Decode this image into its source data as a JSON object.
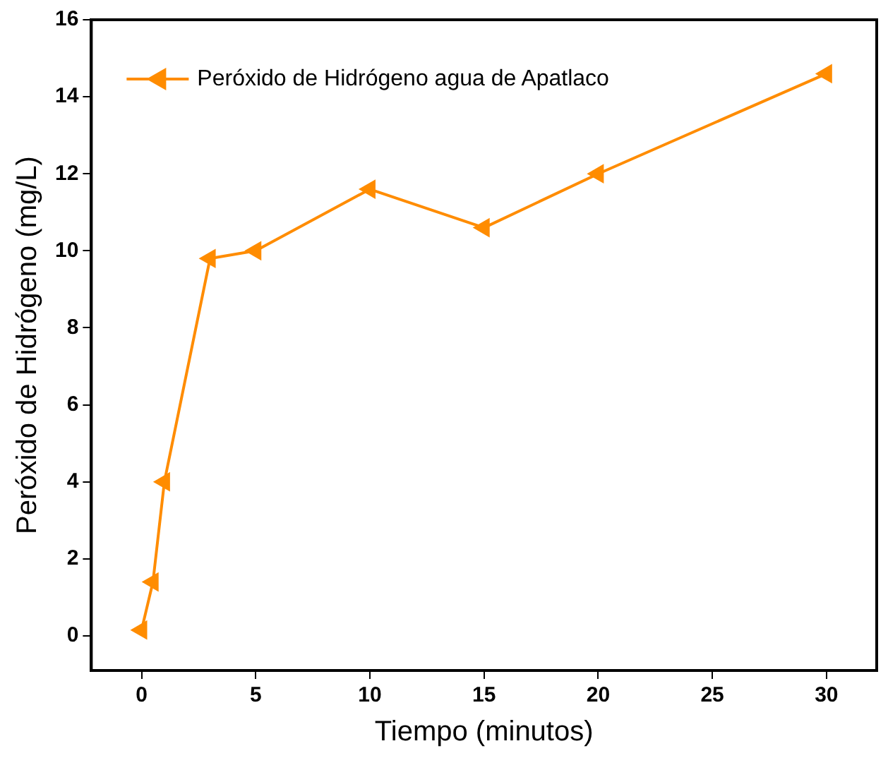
{
  "chart_data": {
    "type": "line",
    "xlabel": "Tiempo (minutos)",
    "ylabel": "Peróxido de Hidrógeno (mg/L)",
    "x": [
      0,
      0.5,
      1,
      3,
      5,
      10,
      15,
      20,
      30
    ],
    "series": [
      {
        "name": "Peróxido de Hidrógeno agua de Apatlaco",
        "color": "#ff8c00",
        "values": [
          0.15,
          1.4,
          4.0,
          9.8,
          10.0,
          11.6,
          10.6,
          12.0,
          14.6
        ]
      }
    ],
    "xlim": [
      -2.2,
      32.2
    ],
    "xticks": [
      0,
      5,
      10,
      15,
      20,
      25,
      30
    ],
    "ylim": [
      -0.9,
      16
    ],
    "yticks": [
      0,
      2,
      4,
      6,
      8,
      10,
      12,
      14,
      16
    ],
    "grid": false,
    "legend": "top left",
    "marker": "triangle",
    "line_style": "solid"
  }
}
